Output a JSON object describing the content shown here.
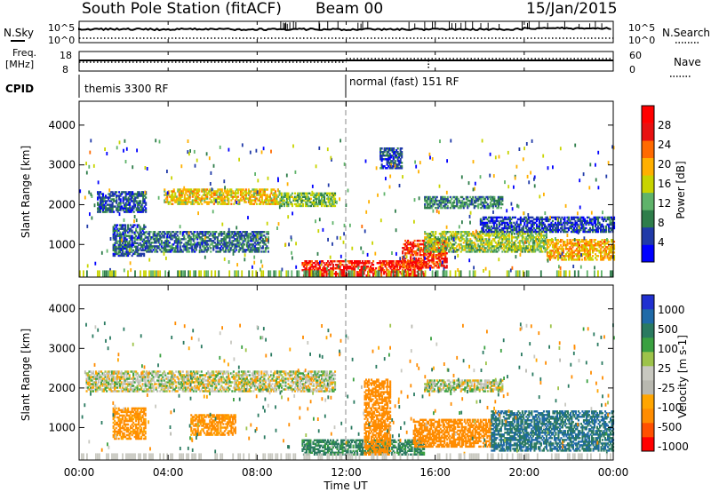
{
  "header": {
    "station": "South Pole Station (fitACF)",
    "beam": "Beam 00",
    "date": "15/Jan/2015"
  },
  "top_panels": {
    "nsky_label": "N.Sky",
    "nsky_ticks": [
      "10^5",
      "10^0"
    ],
    "nsearch_label": "N.Search",
    "nsearch_ticks": [
      "10^5",
      "10^0"
    ],
    "freq_label_1": "Freq.",
    "freq_label_2": "[MHz]",
    "freq_ticks": [
      "18",
      "8"
    ],
    "nave_label": "Nave",
    "nave_ticks": [
      "60",
      "0"
    ],
    "cpid_label": "CPID",
    "cpid_segments": [
      "themis 3300 RF",
      "normal (fast) 151 RF"
    ]
  },
  "colors": {
    "power_scale": [
      "#0000ff",
      "#203aa8",
      "#2e7d4a",
      "#5fb36a",
      "#c8d400",
      "#ffb000",
      "#ff6a00",
      "#e81010",
      "#ff0000"
    ],
    "velocity_scale": [
      "#ff0000",
      "#ff5000",
      "#ff8c00",
      "#ffa500",
      "#b8b8b0",
      "#c8c8c0",
      "#9dc34a",
      "#3aa040",
      "#2a7a60",
      "#1f6aa8",
      "#2030d0"
    ]
  },
  "chart_data": [
    {
      "type": "heatmap",
      "title": "Power",
      "ylabel": "Slant Range [km]",
      "xlabel": "",
      "x_ticks": [
        "00:00",
        "04:00",
        "08:00",
        "12:00",
        "16:00",
        "20:00",
        "00:00"
      ],
      "y_ticks": [
        "1000",
        "2000",
        "3000",
        "4000"
      ],
      "ylim": [
        180,
        4600
      ],
      "colorbar_label": "Power [dB]",
      "colorbar_ticks": [
        "4",
        "8",
        "12",
        "16",
        "20",
        "24",
        "28"
      ],
      "clim": [
        0,
        32
      ],
      "bands": [
        {
          "t0": 0.8,
          "t1": 3.0,
          "r0": 1800,
          "r1": 2300,
          "p": 6
        },
        {
          "t0": 3.8,
          "t1": 9.0,
          "r0": 2000,
          "r1": 2400,
          "p": 18
        },
        {
          "t0": 9.0,
          "t1": 11.5,
          "r0": 1950,
          "r1": 2300,
          "p": 13
        },
        {
          "t0": 1.5,
          "t1": 3.0,
          "r0": 700,
          "r1": 1500,
          "p": 7
        },
        {
          "t0": 3.0,
          "t1": 8.5,
          "r0": 800,
          "r1": 1300,
          "p": 8
        },
        {
          "t0": 10.0,
          "t1": 15.5,
          "r0": 200,
          "r1": 600,
          "p": 28
        },
        {
          "t0": 14.5,
          "t1": 16.5,
          "r0": 400,
          "r1": 1100,
          "p": 26
        },
        {
          "t0": 15.5,
          "t1": 19.0,
          "r0": 1900,
          "r1": 2200,
          "p": 9
        },
        {
          "t0": 15.5,
          "t1": 21.0,
          "r0": 800,
          "r1": 1300,
          "p": 14
        },
        {
          "t0": 21.0,
          "t1": 24.0,
          "r0": 600,
          "r1": 1100,
          "p": 20
        },
        {
          "t0": 18.0,
          "t1": 24.0,
          "r0": 1300,
          "r1": 1700,
          "p": 5
        },
        {
          "t0": 13.5,
          "t1": 14.5,
          "r0": 2900,
          "r1": 3400,
          "p": 6
        }
      ]
    },
    {
      "type": "heatmap",
      "title": "Velocity",
      "ylabel": "Slant Range [km]",
      "xlabel": "Time UT",
      "x_ticks": [
        "00:00",
        "04:00",
        "08:00",
        "12:00",
        "16:00",
        "20:00",
        "00:00"
      ],
      "y_ticks": [
        "1000",
        "2000",
        "3000",
        "4000"
      ],
      "ylim": [
        180,
        4600
      ],
      "colorbar_label": "Velocity [m s-1]",
      "colorbar_ticks": [
        "1000",
        "500",
        "100",
        "25",
        "-25",
        "-100",
        "-500",
        "-1000"
      ],
      "bands": [
        {
          "t0": 0.3,
          "t1": 11.5,
          "r0": 1900,
          "r1": 2400,
          "v": 0
        },
        {
          "t0": 15.5,
          "t1": 19.0,
          "r0": 1900,
          "r1": 2200,
          "v": 0
        },
        {
          "t0": 1.5,
          "t1": 3.0,
          "r0": 700,
          "r1": 1500,
          "v": -150
        },
        {
          "t0": 5.0,
          "t1": 7.0,
          "r0": 800,
          "r1": 1300,
          "v": -150
        },
        {
          "t0": 10.0,
          "t1": 15.5,
          "r0": 300,
          "r1": 700,
          "v": 150
        },
        {
          "t0": 12.8,
          "t1": 14.0,
          "r0": 300,
          "r1": 2200,
          "v": -400
        },
        {
          "t0": 15.0,
          "t1": 18.5,
          "r0": 500,
          "r1": 1200,
          "v": -200
        },
        {
          "t0": 18.5,
          "t1": 24.0,
          "r0": 400,
          "r1": 1400,
          "v": 300
        }
      ]
    }
  ]
}
